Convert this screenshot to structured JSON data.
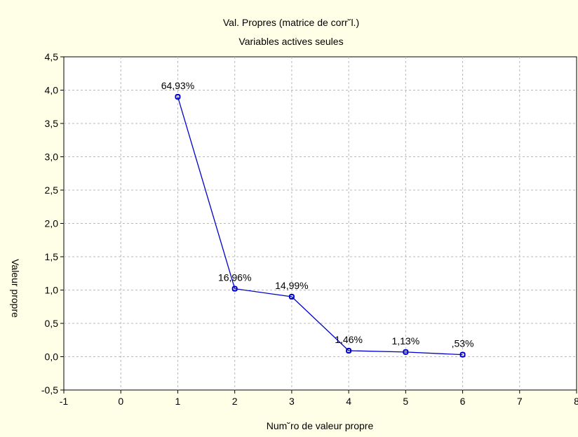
{
  "chart_data": {
    "type": "line",
    "title": "Val. Propres (matrice de corr˘l.)",
    "subtitle": "Variables actives seules",
    "xlabel": "Num˘ro de valeur propre",
    "ylabel": "Valeur propre",
    "xlim": [
      -1,
      8
    ],
    "ylim": [
      -0.5,
      4.5
    ],
    "x_ticks": [
      "-1",
      "0",
      "1",
      "2",
      "3",
      "4",
      "5",
      "6",
      "7",
      "8"
    ],
    "y_ticks": [
      "-0,5",
      "0,0",
      "0,5",
      "1,0",
      "1,5",
      "2,0",
      "2,5",
      "3,0",
      "3,5",
      "4,0",
      "4,5"
    ],
    "grid": true,
    "series": [
      {
        "x": [
          1,
          2,
          3,
          4,
          5,
          6
        ],
        "values": [
          3.9,
          1.02,
          0.9,
          0.09,
          0.07,
          0.03
        ],
        "labels": [
          "64,93%",
          "16,96%",
          "14,99%",
          "1,46%",
          "1,13%",
          ",53%"
        ],
        "color": "#0000cc"
      }
    ]
  }
}
